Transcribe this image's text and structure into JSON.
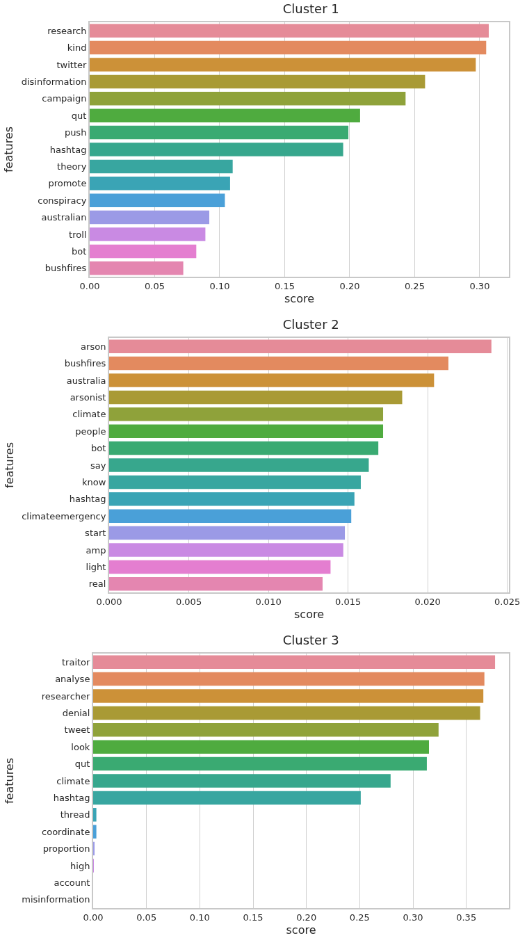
{
  "chart_data": [
    {
      "type": "bar",
      "orientation": "horizontal",
      "title": "Cluster 1",
      "xlabel": "score",
      "ylabel": "features",
      "grid": "x",
      "categories": [
        "research",
        "kind",
        "twitter",
        "disinformation",
        "campaign",
        "qut",
        "push",
        "hashtag",
        "theory",
        "promote",
        "conspiracy",
        "australian",
        "troll",
        "bot",
        "bushfires"
      ],
      "values": [
        0.307,
        0.305,
        0.297,
        0.258,
        0.243,
        0.208,
        0.199,
        0.195,
        0.11,
        0.108,
        0.104,
        0.092,
        0.089,
        0.082,
        0.072
      ],
      "colors": [
        "#e58b98",
        "#e38a5f",
        "#cc9138",
        "#a99a35",
        "#8fa23a",
        "#4fab3f",
        "#3aaa72",
        "#37a78d",
        "#38a6a0",
        "#3aa4b5",
        "#4aa0d8",
        "#9b9ae6",
        "#c98ae3",
        "#e47ed0",
        "#e486b0"
      ],
      "xlim": [
        0,
        0.3225
      ],
      "xticks": [
        {
          "value": 0,
          "label": "0.00"
        },
        0.05,
        {
          "value": 0.1,
          "label": "0.10"
        },
        0.15,
        {
          "value": 0.2,
          "label": "0.20"
        },
        0.25,
        {
          "value": 0.3,
          "label": "0.30"
        }
      ]
    },
    {
      "type": "bar",
      "orientation": "horizontal",
      "title": "Cluster 2",
      "xlabel": "score",
      "ylabel": "features",
      "grid": "x",
      "categories": [
        "arson",
        "bushfires",
        "australia",
        "arsonist",
        "climate",
        "people",
        "bot",
        "say",
        "know",
        "hashtag",
        "climateemergency",
        "start",
        "amp",
        "light",
        "real"
      ],
      "values": [
        0.024,
        0.0213,
        0.0204,
        0.0184,
        0.0172,
        0.0172,
        0.0169,
        0.0163,
        0.0158,
        0.0154,
        0.0152,
        0.0148,
        0.0147,
        0.0139,
        0.0134
      ],
      "colors": [
        "#e58b98",
        "#e38a5f",
        "#cc9138",
        "#a99a35",
        "#8fa23a",
        "#4fab3f",
        "#3aaa72",
        "#37a78d",
        "#38a6a0",
        "#3aa4b5",
        "#4aa0d8",
        "#9b9ae6",
        "#c98ae3",
        "#e47ed0",
        "#e486b0"
      ],
      "xlim": [
        0,
        0.0251
      ],
      "xticks": [
        {
          "value": 0,
          "label": "0.000"
        },
        0.005,
        {
          "value": 0.01,
          "label": "0.010"
        },
        0.015,
        {
          "value": 0.02,
          "label": "0.020"
        },
        0.025
      ]
    },
    {
      "type": "bar",
      "orientation": "horizontal",
      "title": "Cluster 3",
      "xlabel": "score",
      "ylabel": "features",
      "grid": "x",
      "categories": [
        "traitor",
        "analyse",
        "researcher",
        "denial",
        "tweet",
        "look",
        "qut",
        "climate",
        "hashtag",
        "thread",
        "coordinate",
        "proportion",
        "high",
        "account",
        "misinformation"
      ],
      "values": [
        0.377,
        0.367,
        0.366,
        0.363,
        0.324,
        0.315,
        0.313,
        0.279,
        0.251,
        0.003,
        0.003,
        0.001,
        0.0005,
        0,
        0
      ],
      "colors": [
        "#e58b98",
        "#e38a5f",
        "#cc9138",
        "#a99a35",
        "#8fa23a",
        "#4fab3f",
        "#3aaa72",
        "#37a78d",
        "#38a6a0",
        "#3aa4b5",
        "#4aa0d8",
        "#9b9ae6",
        "#c98ae3",
        "#e47ed0",
        "#e486b0"
      ],
      "xlim": [
        0,
        0.39
      ],
      "xticks": [
        {
          "value": 0,
          "label": "0.00"
        },
        0.05,
        {
          "value": 0.1,
          "label": "0.10"
        },
        0.15,
        {
          "value": 0.2,
          "label": "0.20"
        },
        0.25,
        {
          "value": 0.3,
          "label": "0.30"
        },
        0.35
      ]
    }
  ]
}
